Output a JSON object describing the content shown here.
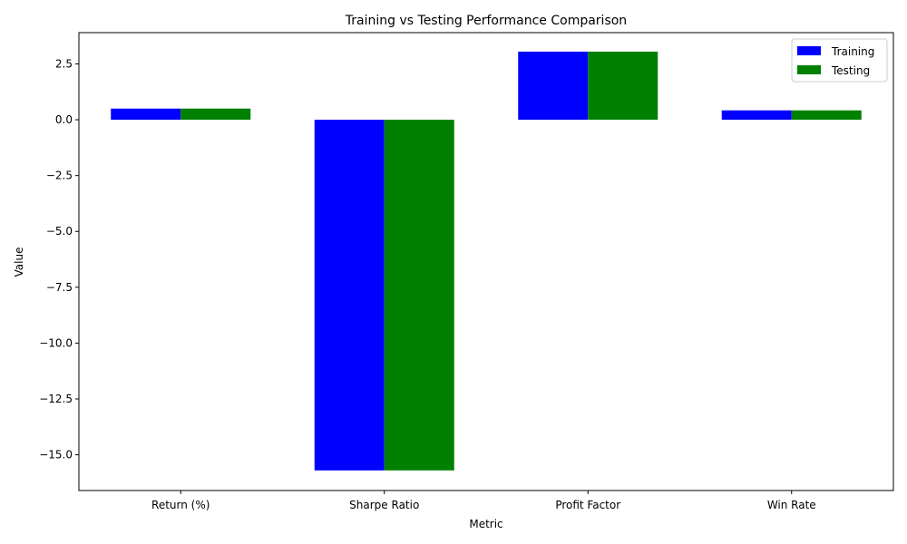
{
  "chart_data": {
    "type": "bar",
    "title": "Training vs Testing Performance Comparison",
    "xlabel": "Metric",
    "ylabel": "Value",
    "categories": [
      "Return (%)",
      "Sharpe Ratio",
      "Profit Factor",
      "Win Rate"
    ],
    "series": [
      {
        "name": "Training",
        "color": "#0000ff",
        "values": [
          0.5,
          -15.7,
          3.05,
          0.42
        ]
      },
      {
        "name": "Testing",
        "color": "#008000",
        "values": [
          0.5,
          -15.7,
          3.05,
          0.42
        ]
      }
    ],
    "ylim": [
      -16.6,
      3.9
    ],
    "yticks": [
      2.5,
      0.0,
      -2.5,
      -5.0,
      -7.5,
      -10.0,
      -12.5,
      -15.0
    ],
    "ytick_labels": [
      "2.5",
      "0.0",
      "−2.5",
      "−5.0",
      "−7.5",
      "−10.0",
      "−12.5",
      "−15.0"
    ],
    "legend_position": "top-right",
    "grid": false
  }
}
